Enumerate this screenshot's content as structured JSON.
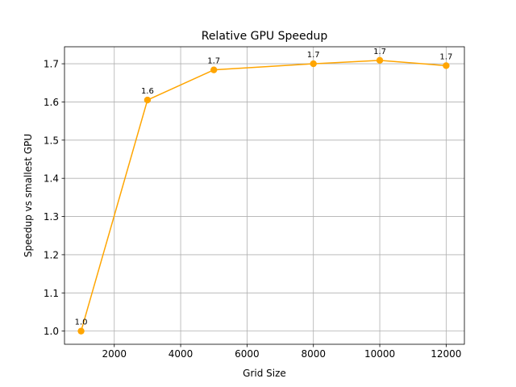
{
  "chart_data": {
    "type": "line",
    "title": "Relative GPU Speedup",
    "xlabel": "Grid Size",
    "ylabel": "Speedup vs smallest GPU",
    "xlim": [
      500,
      12550
    ],
    "ylim": [
      0.9655,
      1.7445
    ],
    "grid": true,
    "x_ticks": [
      2000,
      4000,
      6000,
      8000,
      10000,
      12000
    ],
    "y_ticks": [
      1.0,
      1.1,
      1.2,
      1.3,
      1.4,
      1.5,
      1.6,
      1.7
    ],
    "x_tick_labels": [
      "2000",
      "4000",
      "6000",
      "8000",
      "10000",
      "12000"
    ],
    "y_tick_labels": [
      "1.0",
      "1.1",
      "1.2",
      "1.3",
      "1.4",
      "1.5",
      "1.6",
      "1.7"
    ],
    "series": [
      {
        "color": "#ffa500",
        "x": [
          1000,
          3000,
          5000,
          8000,
          10000,
          12000
        ],
        "values": [
          1.0,
          1.605,
          1.684,
          1.7,
          1.709,
          1.695
        ],
        "labels": [
          "1.0",
          "1.6",
          "1.7",
          "1.7",
          "1.7",
          "1.7"
        ]
      }
    ]
  }
}
